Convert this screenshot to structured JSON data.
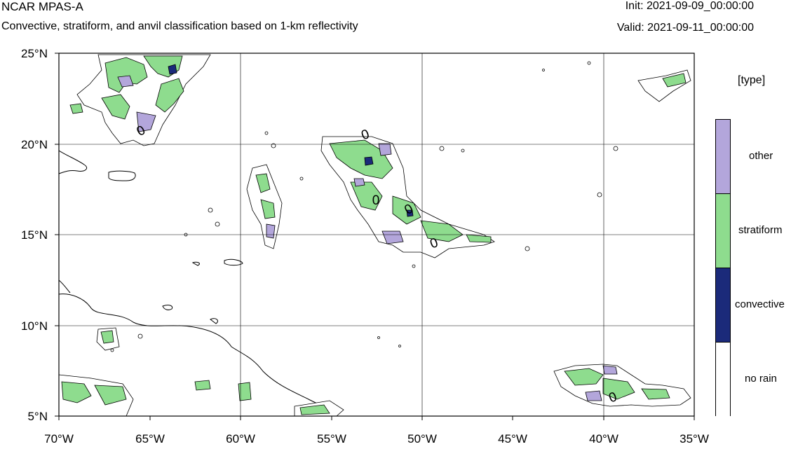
{
  "header": {
    "title": "NCAR MPAS-A",
    "subtitle": "Convective, stratiform, and anvil classification based on 1-km reflectivity",
    "init": "Init: 2021-09-09_00:00:00",
    "valid": "Valid: 2021-09-11_00:00:00"
  },
  "map": {
    "lat_ticks": [
      "25°N",
      "20°N",
      "15°N",
      "10°N",
      "5°N"
    ],
    "lon_ticks": [
      "70°W",
      "65°W",
      "60°W",
      "55°W",
      "50°W",
      "45°W",
      "40°W",
      "35°W"
    ],
    "extent": {
      "lon_min": -70,
      "lon_max": -35,
      "lat_min": 5,
      "lat_max": 25
    },
    "contour_label": "0"
  },
  "legend": {
    "title": "[type]",
    "items": [
      {
        "label": "other",
        "color": "#b3a6db"
      },
      {
        "label": "stratiform",
        "color": "#8edc8e"
      },
      {
        "label": "convective",
        "color": "#1b2a7a"
      },
      {
        "label": "no rain",
        "color": "#ffffff"
      }
    ]
  },
  "colors": {
    "coastline": "#000000",
    "grid": "#000000"
  }
}
